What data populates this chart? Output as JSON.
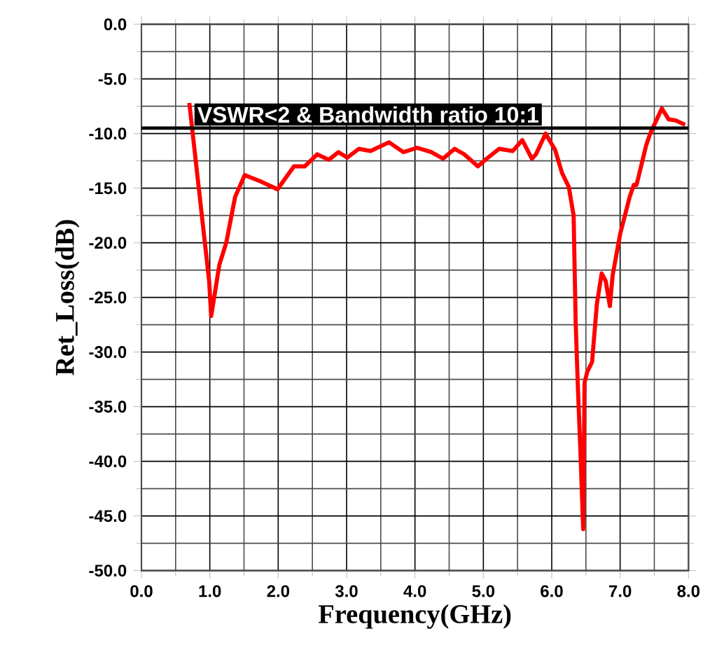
{
  "chart_data": {
    "type": "line",
    "xlabel": "Frequency(GHz)",
    "ylabel": "Ret_Loss(dB)",
    "xlim": [
      0,
      8
    ],
    "ylim": [
      -50,
      0
    ],
    "xticks": [
      {
        "value": 0,
        "label": "0.0"
      },
      {
        "value": 1,
        "label": "1.0"
      },
      {
        "value": 2,
        "label": "2.0"
      },
      {
        "value": 3,
        "label": "3.0"
      },
      {
        "value": 4,
        "label": "4.0"
      },
      {
        "value": 5,
        "label": "5.0"
      },
      {
        "value": 6,
        "label": "6.0"
      },
      {
        "value": 7,
        "label": "7.0"
      },
      {
        "value": 8,
        "label": "8.0"
      }
    ],
    "yticks": [
      {
        "value": 0,
        "label": "0.0"
      },
      {
        "value": -5,
        "label": "-5.0"
      },
      {
        "value": -10,
        "label": "-10.0"
      },
      {
        "value": -15,
        "label": "-15.0"
      },
      {
        "value": -20,
        "label": "-20.0"
      },
      {
        "value": -25,
        "label": "-25.0"
      },
      {
        "value": -30,
        "label": "-30.0"
      },
      {
        "value": -35,
        "label": "-35.0"
      },
      {
        "value": -40,
        "label": "-40.0"
      },
      {
        "value": -45,
        "label": "-45.0"
      },
      {
        "value": -50,
        "label": "-50.0"
      }
    ],
    "grid": true,
    "marker": "none",
    "line_style": "solid",
    "ref_lines": [
      {
        "axis": "y",
        "value": -9.5,
        "color": "#000000"
      }
    ],
    "annotations": [
      "VSWR<2 & Bandwidth ratio 10:1"
    ],
    "series": [
      {
        "color": "#ff0000",
        "x": [
          0.7,
          0.99,
          1.02,
          1.14,
          1.24,
          1.37,
          1.51,
          1.75,
          1.99,
          2.23,
          2.39,
          2.57,
          2.74,
          2.88,
          3.01,
          3.18,
          3.35,
          3.62,
          3.83,
          4.03,
          4.24,
          4.41,
          4.58,
          4.72,
          4.92,
          5.05,
          5.23,
          5.43,
          5.57,
          5.71,
          5.77,
          5.91,
          6.05,
          6.15,
          6.25,
          6.32,
          6.35,
          6.38,
          6.42,
          6.46,
          6.48,
          6.52,
          6.59,
          6.66,
          6.73,
          6.79,
          6.85,
          6.89,
          7.0,
          7.14,
          7.2,
          7.24,
          7.38,
          7.44,
          7.61,
          7.71,
          7.81,
          7.95
        ],
        "values": [
          -7.2,
          -23.5,
          -26.7,
          -22.0,
          -20.0,
          -15.8,
          -13.8,
          -14.4,
          -15.1,
          -13.0,
          -13.0,
          -11.9,
          -12.4,
          -11.7,
          -12.2,
          -11.4,
          -11.6,
          -10.8,
          -11.7,
          -11.3,
          -11.7,
          -12.3,
          -11.4,
          -11.9,
          -13.0,
          -12.3,
          -11.4,
          -11.6,
          -10.6,
          -12.3,
          -11.9,
          -10.0,
          -11.5,
          -13.6,
          -14.9,
          -17.5,
          -27.3,
          -32.8,
          -39.2,
          -46.2,
          -32.8,
          -31.8,
          -30.9,
          -25.6,
          -22.8,
          -23.5,
          -25.8,
          -23.0,
          -19.2,
          -15.8,
          -14.7,
          -14.7,
          -11.1,
          -10.0,
          -7.7,
          -8.7,
          -8.8,
          -9.2
        ]
      }
    ]
  }
}
